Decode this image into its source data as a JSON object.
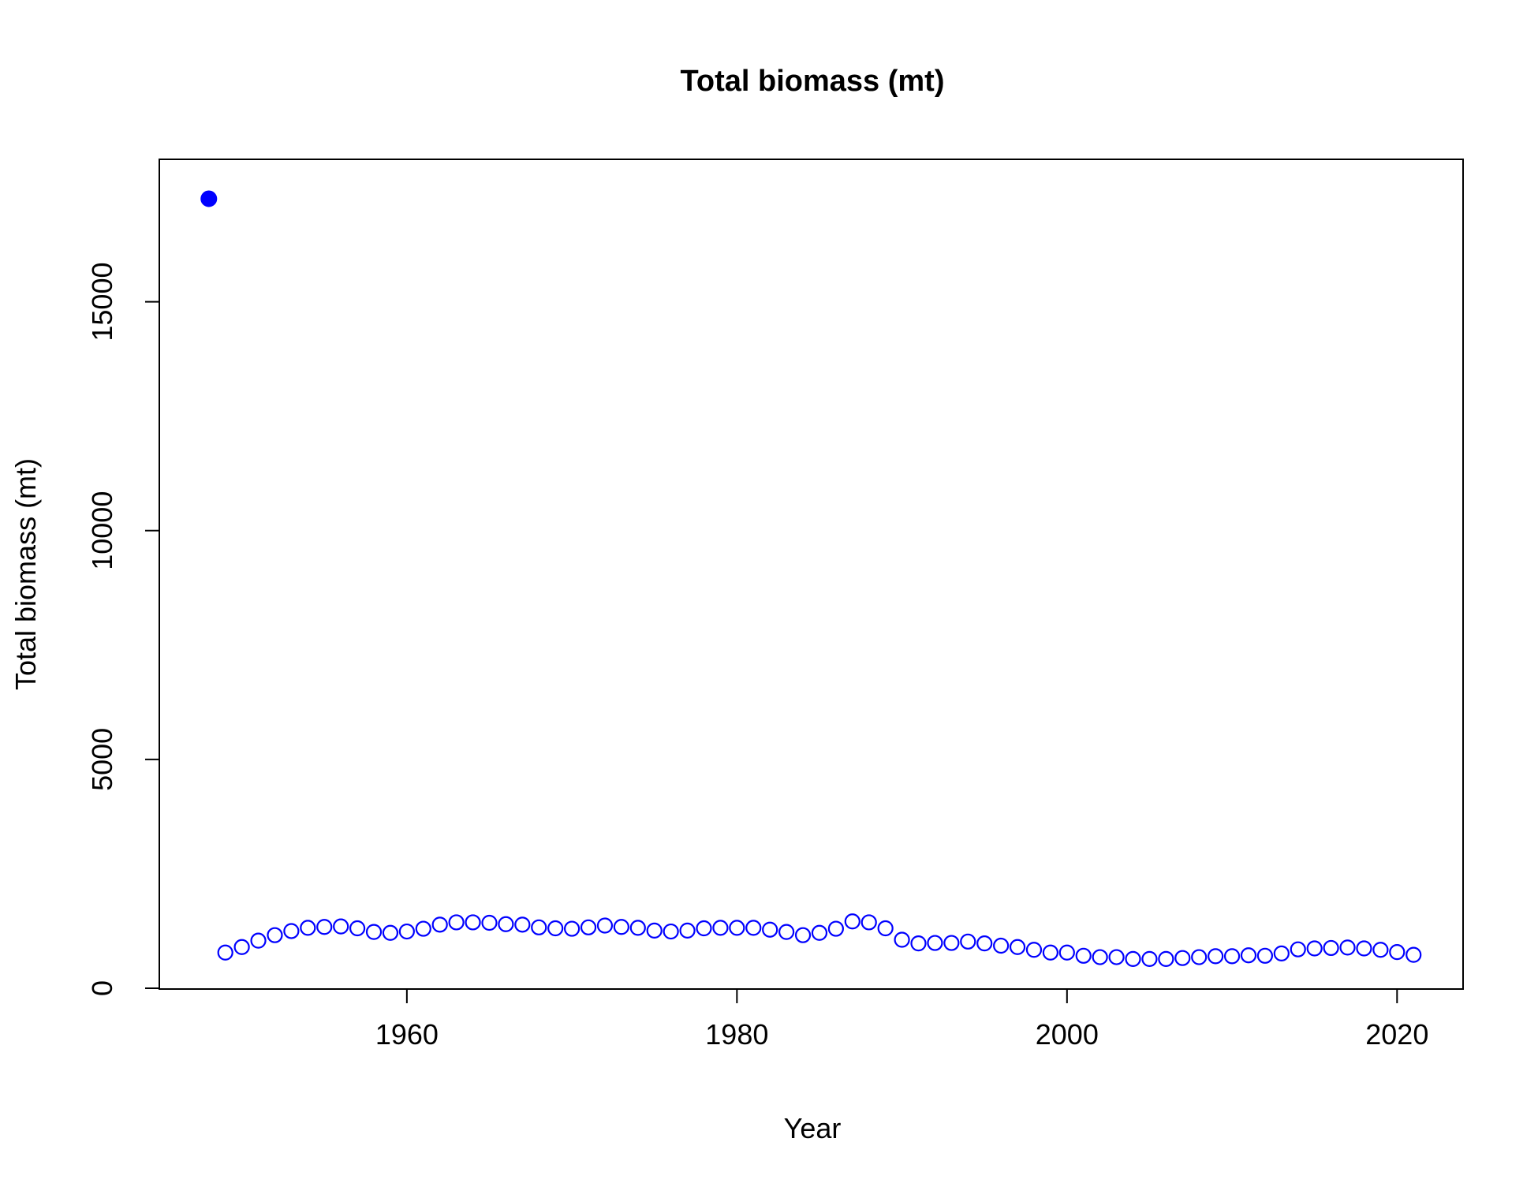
{
  "chart_data": {
    "type": "scatter",
    "title": "Total biomass (mt)",
    "xlabel": "Year",
    "ylabel": "Total biomass (mt)",
    "xlim": [
      1945,
      2024
    ],
    "ylim": [
      0,
      18000
    ],
    "x_ticks": [
      1960,
      1980,
      2000,
      2020
    ],
    "y_ticks": [
      0,
      5000,
      10000,
      15000
    ],
    "x_tick_labels": [
      "1960",
      "1980",
      "2000",
      "2020"
    ],
    "y_tick_labels": [
      "0",
      "5000",
      "10000",
      "15000"
    ],
    "grid": false,
    "legend": "none",
    "color": "#0000FF",
    "series": [
      {
        "marker": "filled-circle",
        "x": [
          1948
        ],
        "y": [
          17250
        ]
      },
      {
        "marker": "open-circle",
        "x": [
          1949,
          1950,
          1951,
          1952,
          1953,
          1954,
          1955,
          1956,
          1957,
          1958,
          1959,
          1960,
          1961,
          1962,
          1963,
          1964,
          1965,
          1966,
          1967,
          1968,
          1969,
          1970,
          1971,
          1972,
          1973,
          1974,
          1975,
          1976,
          1977,
          1978,
          1979,
          1980,
          1981,
          1982,
          1983,
          1984,
          1985,
          1986,
          1987,
          1988,
          1989,
          1990,
          1991,
          1992,
          1993,
          1994,
          1995,
          1996,
          1997,
          1998,
          1999,
          2000,
          2001,
          2002,
          2003,
          2004,
          2005,
          2006,
          2007,
          2008,
          2009,
          2010,
          2011,
          2012,
          2013,
          2014,
          2015,
          2016,
          2017,
          2018,
          2019,
          2020,
          2021
        ],
        "y": [
          780,
          900,
          1040,
          1160,
          1250,
          1320,
          1340,
          1350,
          1310,
          1230,
          1210,
          1240,
          1300,
          1390,
          1440,
          1440,
          1430,
          1400,
          1390,
          1330,
          1310,
          1300,
          1330,
          1370,
          1340,
          1320,
          1260,
          1240,
          1260,
          1310,
          1320,
          1320,
          1320,
          1280,
          1230,
          1160,
          1210,
          1300,
          1460,
          1440,
          1310,
          1060,
          980,
          990,
          990,
          1020,
          980,
          930,
          900,
          840,
          780,
          780,
          710,
          680,
          680,
          640,
          640,
          640,
          660,
          680,
          700,
          700,
          720,
          710,
          760,
          850,
          870,
          880,
          890,
          870,
          840,
          790,
          730
        ]
      }
    ]
  }
}
